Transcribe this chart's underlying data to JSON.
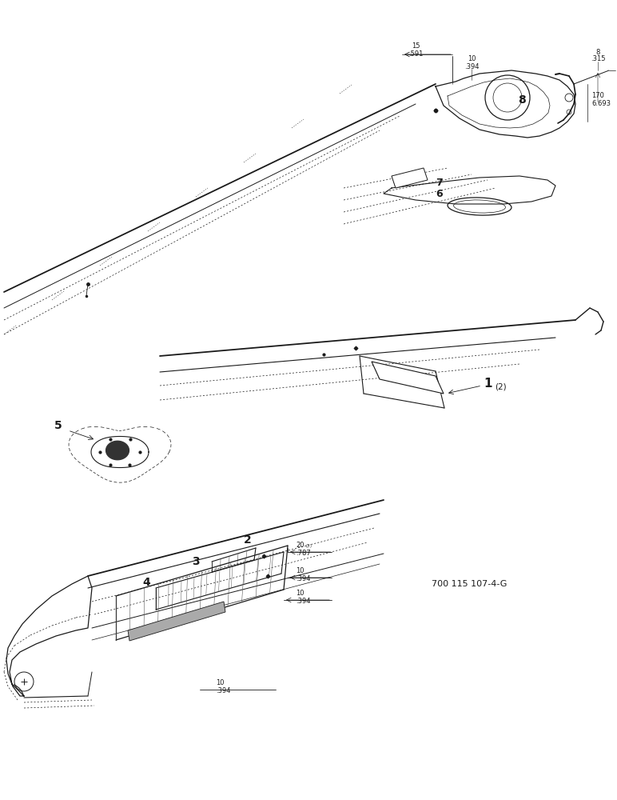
{
  "bg_color": "#ffffff",
  "line_color": "#1a1a1a",
  "fig_width": 7.72,
  "fig_height": 10.0,
  "part_number": "700 115 107-4-G"
}
